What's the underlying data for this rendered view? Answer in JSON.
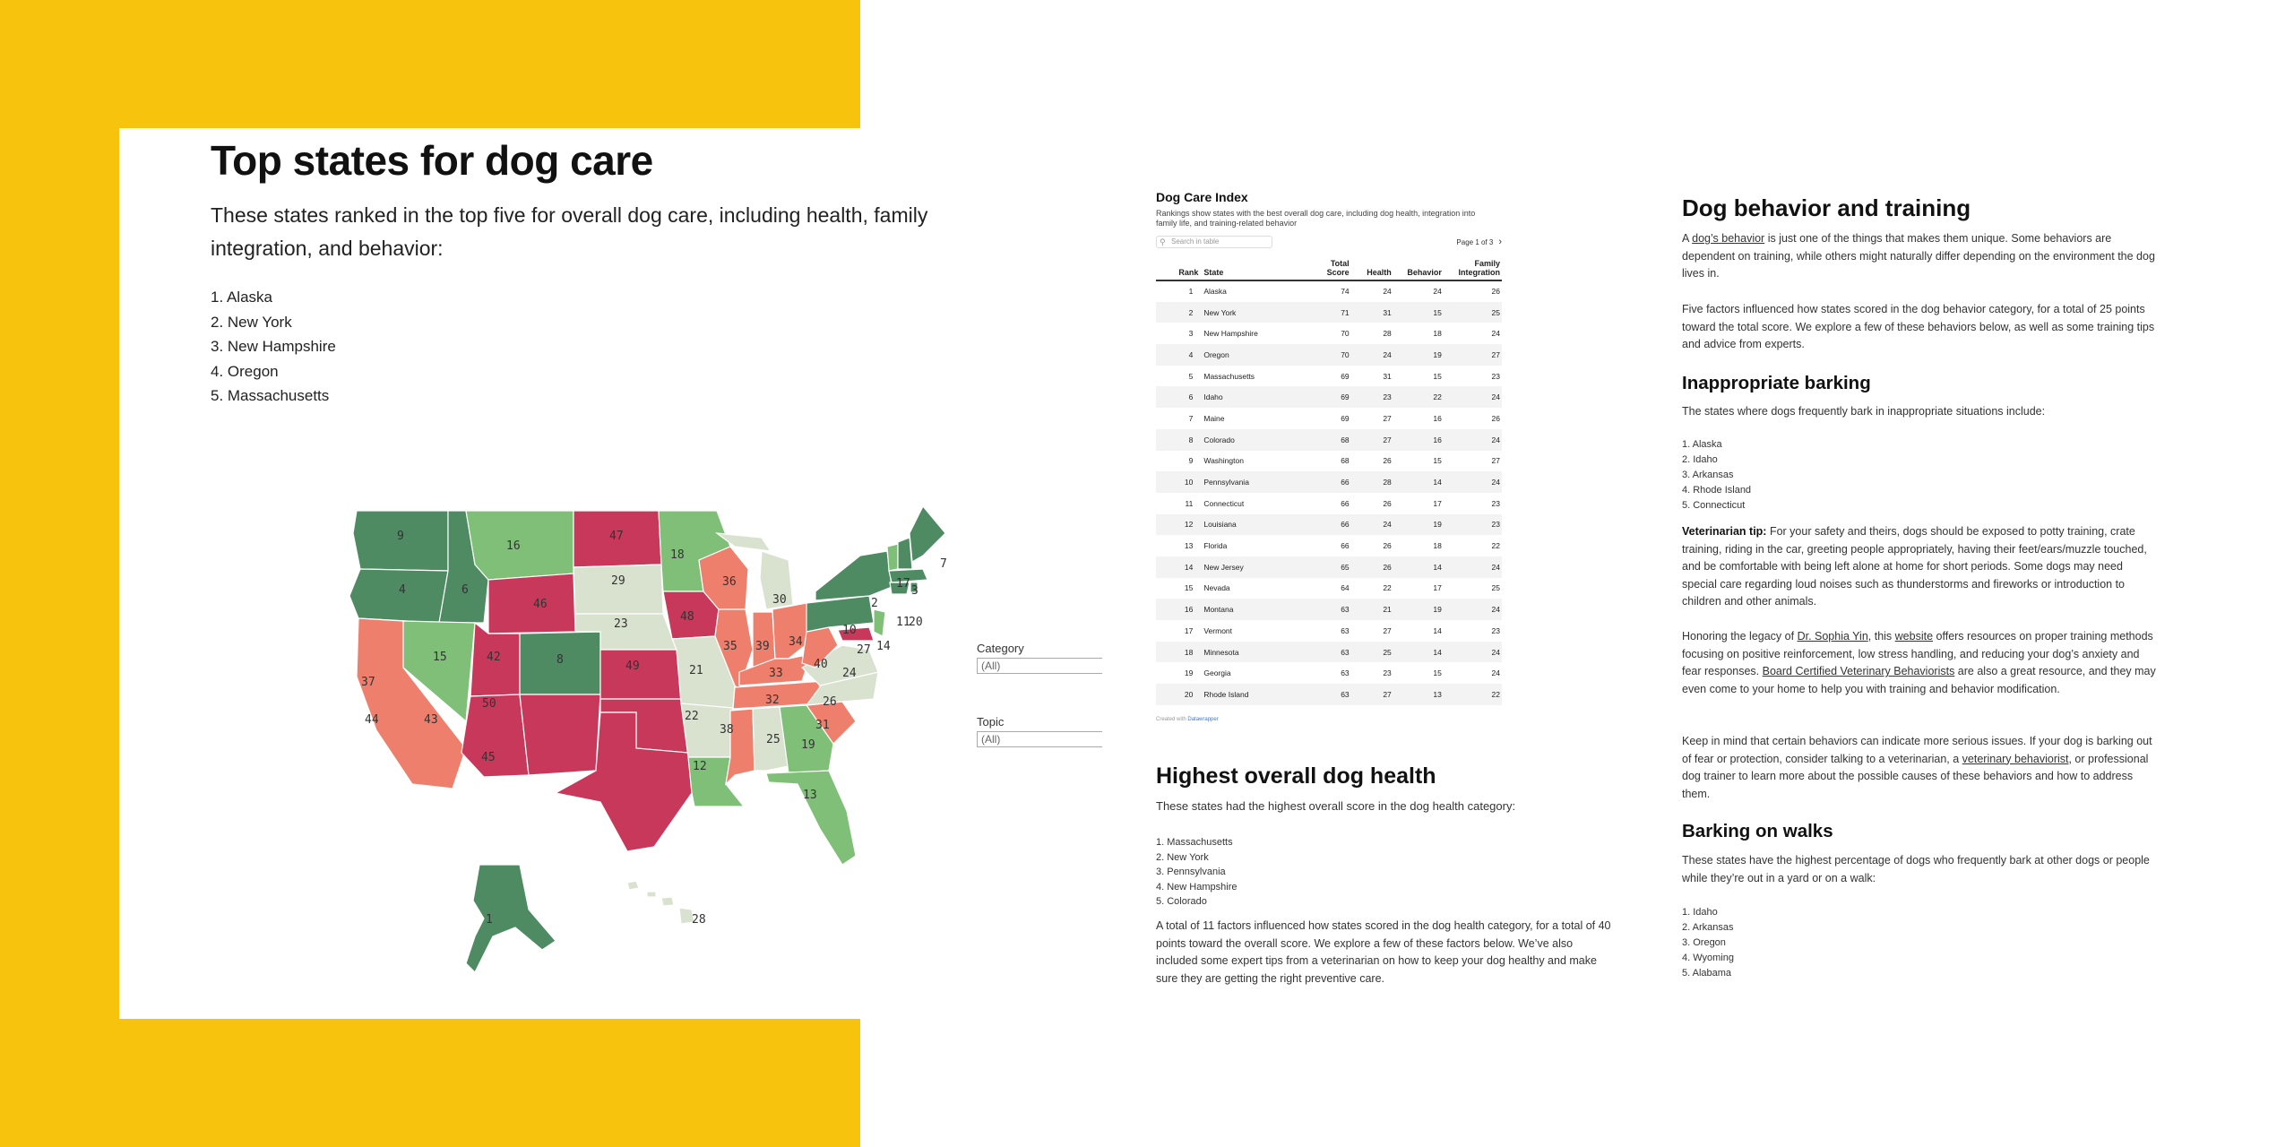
{
  "left": {
    "title": "Top states for dog care",
    "intro": "These states ranked in the top five for overall dog care, including health, family integration, and behavior:",
    "list": [
      "1. Alaska",
      "2. New York",
      "3. New Hampshire",
      "4. Oregon",
      "5. Massachusetts"
    ]
  },
  "map": {
    "labels": [
      "9",
      "16",
      "47",
      "18",
      "4",
      "6",
      "46",
      "29",
      "36",
      "30",
      "48",
      "2",
      "17",
      "3",
      "7",
      "11",
      "20",
      "15",
      "42",
      "8",
      "23",
      "10",
      "37",
      "49",
      "21",
      "35",
      "39",
      "34",
      "40",
      "27",
      "14",
      "24",
      "44",
      "43",
      "50",
      "22",
      "33",
      "32",
      "26",
      "45",
      "38",
      "25",
      "19",
      "31",
      "12",
      "13",
      "1",
      "28"
    ],
    "colors": {
      "dark_green": "#4e8a62",
      "green": "#7fbf78",
      "pale": "#d9e2cf",
      "salmon": "#ef7f6d",
      "crimson": "#c8385a"
    }
  },
  "filters": {
    "category_label": "Category",
    "category_value": "(All)",
    "topic_label": "Topic",
    "topic_value": "(All)"
  },
  "table": {
    "title": "Dog Care Index",
    "subtitle": "Rankings show states with the best overall dog care, including dog health, integration into family life, and training-related behavior",
    "search_placeholder": "Search in table",
    "page_info": "Page 1 of 3",
    "next_icon": "›",
    "columns": [
      "Rank",
      "State",
      "Total Score",
      "Health",
      "Behavior",
      "Family Integration"
    ],
    "rows": [
      [
        "1",
        "Alaska",
        "74",
        "24",
        "24",
        "26"
      ],
      [
        "2",
        "New York",
        "71",
        "31",
        "15",
        "25"
      ],
      [
        "3",
        "New Hampshire",
        "70",
        "28",
        "18",
        "24"
      ],
      [
        "4",
        "Oregon",
        "70",
        "24",
        "19",
        "27"
      ],
      [
        "5",
        "Massachusetts",
        "69",
        "31",
        "15",
        "23"
      ],
      [
        "6",
        "Idaho",
        "69",
        "23",
        "22",
        "24"
      ],
      [
        "7",
        "Maine",
        "69",
        "27",
        "16",
        "26"
      ],
      [
        "8",
        "Colorado",
        "68",
        "27",
        "16",
        "24"
      ],
      [
        "9",
        "Washington",
        "68",
        "26",
        "15",
        "27"
      ],
      [
        "10",
        "Pennsylvania",
        "66",
        "28",
        "14",
        "24"
      ],
      [
        "11",
        "Connecticut",
        "66",
        "26",
        "17",
        "23"
      ],
      [
        "12",
        "Louisiana",
        "66",
        "24",
        "19",
        "23"
      ],
      [
        "13",
        "Florida",
        "66",
        "26",
        "18",
        "22"
      ],
      [
        "14",
        "New Jersey",
        "65",
        "26",
        "14",
        "24"
      ],
      [
        "15",
        "Nevada",
        "64",
        "22",
        "17",
        "25"
      ],
      [
        "16",
        "Montana",
        "63",
        "21",
        "19",
        "24"
      ],
      [
        "17",
        "Vermont",
        "63",
        "27",
        "14",
        "23"
      ],
      [
        "18",
        "Minnesota",
        "63",
        "25",
        "14",
        "24"
      ],
      [
        "19",
        "Georgia",
        "63",
        "23",
        "15",
        "24"
      ],
      [
        "20",
        "Rhode Island",
        "63",
        "27",
        "13",
        "22"
      ]
    ],
    "credit_prefix": "Created with ",
    "credit_link": "Datawrapper"
  },
  "health": {
    "heading": "Highest overall dog health",
    "intro": "These states had the highest overall score in the dog health category:",
    "list": [
      "1. Massachusetts",
      "2. New York",
      "3. Pennsylvania",
      "4. New Hampshire",
      "5. Colorado"
    ],
    "paragraph": "A total of 11 factors influenced how states scored in the dog health category, for a total of 40 points toward the overall score. We explore a few of these factors below. We’ve also included some expert tips from a veterinarian on how to keep your dog healthy and make sure they are getting the right preventive care."
  },
  "behavior": {
    "heading": "Dog behavior and training",
    "p1_a": "A ",
    "p1_link": "dog’s behavior",
    "p1_b": " is just one of the things that makes them unique. Some behaviors are dependent on training, while others might naturally differ depending on the environment the dog lives in.",
    "p2": "Five factors influenced how states scored in the dog behavior category, for a total of 25 points toward the total score. We explore a few of these behaviors below, as well as some training tips and advice from experts.",
    "barking_heading": "Inappropriate barking",
    "barking_intro": "The states where dogs frequently bark in inappropriate situations include:",
    "barking_list": [
      "1. Alaska",
      "2. Idaho",
      "3. Arkansas",
      "4. Rhode Island",
      "5. Connecticut"
    ],
    "tip_label": "Veterinarian tip:",
    "tip_text": " For your safety and theirs, dogs should be exposed to potty training, crate training, riding in the car, greeting people appropriately, having their feet/ears/muzzle touched, and be comfortable with being left alone at home for short periods. Some dogs may need special care regarding loud noises such as thunderstorms and fireworks or introduction to children and other animals.",
    "legacy_a": "Honoring the legacy of ",
    "legacy_link1": "Dr. Sophia Yin",
    "legacy_b": ", this ",
    "legacy_link2": "website",
    "legacy_c": " offers resources on proper training methods focusing on positive reinforcement, low stress handling, and reducing your dog’s anxiety and fear responses. ",
    "legacy_link3": "Board Certified Veterinary Behaviorists",
    "legacy_d": " are also a great resource, and they may even come to your home to help you with training and behavior modification.",
    "keep_a": "Keep in mind that certain behaviors can indicate more serious issues. If your dog is barking out of fear or protection, consider talking to a veterinarian, a ",
    "keep_link": "veterinary behaviorist",
    "keep_b": ", or professional dog trainer to learn more about the possible causes of these behaviors and how to address them.",
    "walks_heading": "Barking on walks",
    "walks_intro": "These states have the highest percentage of dogs who frequently bark at other dogs or people while they’re out in a yard or on a walk:",
    "walks_list": [
      "1. Idaho",
      "2. Arkansas",
      "3. Oregon",
      "4. Wyoming",
      "5. Alabama"
    ]
  }
}
